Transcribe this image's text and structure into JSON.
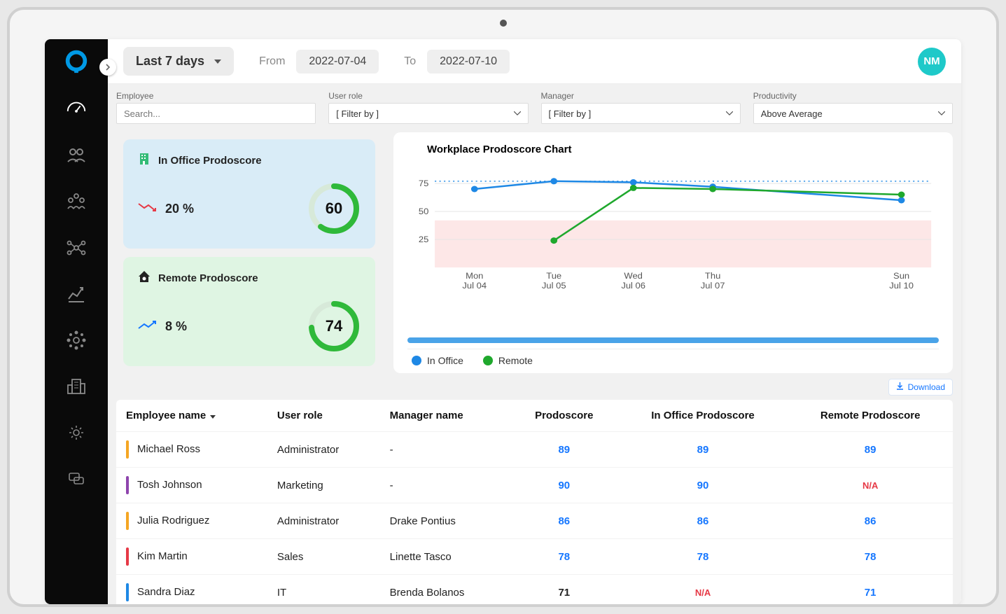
{
  "colors": {
    "sidebar_bg": "#0a0a0a",
    "logo_accent": "#0099e5",
    "avatar_bg": "#1ec9c9",
    "office_card_bg": "#d9ecf7",
    "remote_card_bg": "#dff5e3",
    "gauge_green": "#2fb93a",
    "gauge_track": "#d7e9d9",
    "trend_down": "#e63946",
    "trend_up": "#1677ff",
    "chart_office": "#1e88e5",
    "chart_remote": "#1fa82d",
    "chart_band_low": "#fde7e7",
    "chart_band_mid": "#ffffff",
    "chart_grid": "#e6e6e6",
    "score_link": "#1677ff",
    "na_text": "#e63946",
    "scrollbar": "#4aa3e8"
  },
  "header": {
    "range_label": "Last 7 days",
    "from_label": "From",
    "from_date": "2022-07-04",
    "to_label": "To",
    "to_date": "2022-07-10",
    "avatar_initials": "NM"
  },
  "filters": {
    "employee_label": "Employee",
    "employee_placeholder": "Search...",
    "role_label": "User role",
    "role_value": "[ Filter by ]",
    "manager_label": "Manager",
    "manager_value": "[ Filter by ]",
    "productivity_label": "Productivity",
    "productivity_value": "Above Average"
  },
  "score_cards": {
    "office": {
      "title": "In Office Prodoscore",
      "trend_direction": "down",
      "trend_pct": "20 %",
      "score": "60",
      "gauge_pct": 60
    },
    "remote": {
      "title": "Remote Prodoscore",
      "trend_direction": "up",
      "trend_pct": "8 %",
      "score": "74",
      "gauge_pct": 74
    }
  },
  "chart": {
    "title": "Workplace Prodoscore Chart",
    "type": "line",
    "y_ticks": [
      25,
      50,
      75
    ],
    "ylim": [
      0,
      90
    ],
    "x_labels": [
      {
        "top": "Mon",
        "bottom": "Jul 04"
      },
      {
        "top": "Tue",
        "bottom": "Jul 05"
      },
      {
        "top": "Wed",
        "bottom": "Jul 06"
      },
      {
        "top": "Thu",
        "bottom": "Jul 07"
      },
      {
        "top": "Sun",
        "bottom": "Jul 10"
      }
    ],
    "x_positions": [
      0.08,
      0.24,
      0.4,
      0.56,
      0.94
    ],
    "series": {
      "office": {
        "label": "In Office",
        "color": "#1e88e5",
        "values": [
          70,
          77,
          76,
          72,
          60
        ],
        "dashed_after_last": true
      },
      "remote": {
        "label": "Remote",
        "color": "#1fa82d",
        "values": [
          null,
          24,
          71,
          70,
          65
        ],
        "dashed_after_last": false
      }
    },
    "red_band_top": 42
  },
  "table": {
    "download_label": "Download",
    "columns": [
      "Employee name",
      "User role",
      "Manager name",
      "Prodoscore",
      "In Office Prodoscore",
      "Remote Prodoscore"
    ],
    "rows": [
      {
        "marker": "#f5a623",
        "employee": "Michael Ross",
        "role": "Administrator",
        "manager": "-",
        "prodo": "89",
        "office": "89",
        "remote": "89"
      },
      {
        "marker": "#8e44ad",
        "employee": "Tosh Johnson",
        "role": "Marketing",
        "manager": "-",
        "prodo": "90",
        "office": "90",
        "remote": "N/A"
      },
      {
        "marker": "#f5a623",
        "employee": "Julia Rodriguez",
        "role": "Administrator",
        "manager": "Drake Pontius",
        "prodo": "86",
        "office": "86",
        "remote": "86"
      },
      {
        "marker": "#e63946",
        "employee": "Kim Martin",
        "role": "Sales",
        "manager": "Linette Tasco",
        "prodo": "78",
        "office": "78",
        "remote": "78"
      },
      {
        "marker": "#1e88e5",
        "employee": "Sandra Diaz",
        "role": "IT",
        "manager": "Brenda Bolanos",
        "prodo": "71",
        "office": "N/A",
        "remote": "71"
      }
    ]
  }
}
